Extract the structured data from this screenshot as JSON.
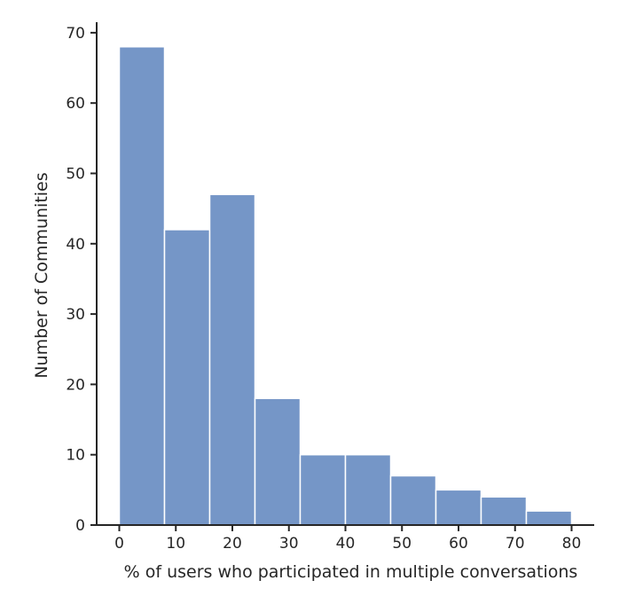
{
  "chart_data": {
    "type": "bar",
    "subtype": "histogram",
    "xlabel": "% of users who participated in multiple conversations",
    "ylabel": "Number of Communities",
    "xlim": [
      -4,
      84
    ],
    "ylim": [
      0,
      71.5
    ],
    "x_ticks": [
      0,
      10,
      20,
      30,
      40,
      50,
      60,
      70,
      80
    ],
    "y_ticks": [
      0,
      10,
      20,
      30,
      40,
      50,
      60,
      70
    ],
    "bins": [
      {
        "x0": 0,
        "x1": 8,
        "count": 68
      },
      {
        "x0": 8,
        "x1": 16,
        "count": 42
      },
      {
        "x0": 16,
        "x1": 24,
        "count": 47
      },
      {
        "x0": 24,
        "x1": 32,
        "count": 18
      },
      {
        "x0": 32,
        "x1": 40,
        "count": 10
      },
      {
        "x0": 40,
        "x1": 48,
        "count": 10
      },
      {
        "x0": 48,
        "x1": 56,
        "count": 7
      },
      {
        "x0": 56,
        "x1": 64,
        "count": 5
      },
      {
        "x0": 64,
        "x1": 72,
        "count": 4
      },
      {
        "x0": 72,
        "x1": 80,
        "count": 2
      }
    ],
    "bar_color": "#7596c7",
    "grid": false
  }
}
